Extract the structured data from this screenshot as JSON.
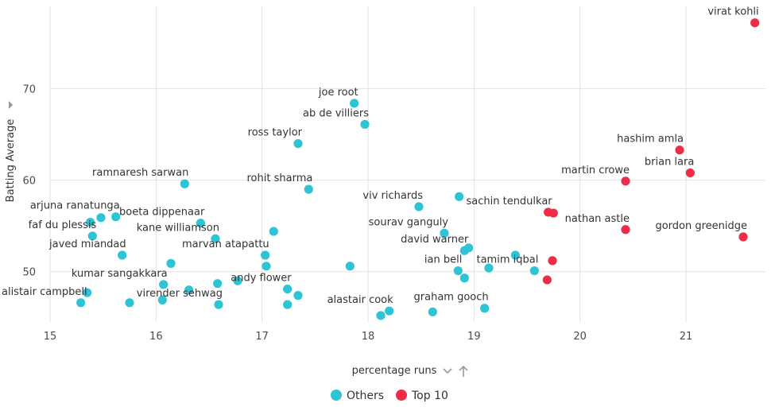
{
  "chart_data": {
    "type": "scatter",
    "xlabel": "percentage runs",
    "ylabel": "Batting Average",
    "xlim": [
      15,
      21.75
    ],
    "ylim": [
      44.5,
      79
    ],
    "x_ticks": [
      15,
      16,
      17,
      18,
      19,
      20,
      21
    ],
    "y_ticks": [
      50,
      60,
      70
    ],
    "grid": true,
    "legend_position": "bottom",
    "colors": {
      "Others": "#2ec4d6",
      "Top 10": "#ee2c48"
    },
    "series": [
      {
        "name": "Others",
        "points": [
          {
            "label": "joe root",
            "x": 17.87,
            "y": 68.4
          },
          {
            "label": "ab de villiers",
            "x": 17.97,
            "y": 66.1
          },
          {
            "label": "ross taylor",
            "x": 17.34,
            "y": 64.0
          },
          {
            "label": "ramnaresh sarwan",
            "x": 16.27,
            "y": 59.6
          },
          {
            "label": "rohit sharma",
            "x": 17.44,
            "y": 59.0
          },
          {
            "label": "",
            "x": 18.86,
            "y": 58.2
          },
          {
            "label": "viv richards",
            "x": 18.48,
            "y": 57.1
          },
          {
            "label": "arjuna ranatunga",
            "x": 15.62,
            "y": 56.0
          },
          {
            "label": "",
            "x": 15.48,
            "y": 55.9
          },
          {
            "label": "",
            "x": 15.38,
            "y": 55.4
          },
          {
            "label": "boeta dippenaar",
            "x": 16.42,
            "y": 55.3
          },
          {
            "label": "",
            "x": 17.11,
            "y": 54.4
          },
          {
            "label": "kane williamson",
            "x": 16.56,
            "y": 53.6
          },
          {
            "label": "faf du plessis",
            "x": 15.4,
            "y": 53.9
          },
          {
            "label": "sourav ganguly",
            "x": 18.72,
            "y": 54.2
          },
          {
            "label": "",
            "x": 18.95,
            "y": 52.6
          },
          {
            "label": "david warner",
            "x": 18.91,
            "y": 52.3
          },
          {
            "label": "javed miandad",
            "x": 15.68,
            "y": 51.8
          },
          {
            "label": "marvan atapattu",
            "x": 17.03,
            "y": 51.8
          },
          {
            "label": "",
            "x": 19.39,
            "y": 51.8
          },
          {
            "label": "",
            "x": 16.14,
            "y": 50.9
          },
          {
            "label": "",
            "x": 17.04,
            "y": 50.6
          },
          {
            "label": "",
            "x": 17.83,
            "y": 50.6
          },
          {
            "label": "",
            "x": 19.14,
            "y": 50.4
          },
          {
            "label": "ian bell",
            "x": 18.85,
            "y": 50.1
          },
          {
            "label": "tamim iqbal",
            "x": 19.57,
            "y": 50.1
          },
          {
            "label": "",
            "x": 18.91,
            "y": 49.3
          },
          {
            "label": "",
            "x": 16.77,
            "y": 49.0
          },
          {
            "label": "kumar sangakkara",
            "x": 16.07,
            "y": 48.6
          },
          {
            "label": "",
            "x": 16.58,
            "y": 48.7
          },
          {
            "label": "andy flower",
            "x": 17.24,
            "y": 48.1
          },
          {
            "label": "",
            "x": 16.31,
            "y": 48.0
          },
          {
            "label": "",
            "x": 15.35,
            "y": 47.7
          },
          {
            "label": "",
            "x": 17.34,
            "y": 47.4
          },
          {
            "label": "alistair campbell",
            "x": 15.29,
            "y": 46.6
          },
          {
            "label": "",
            "x": 15.75,
            "y": 46.6
          },
          {
            "label": "",
            "x": 16.06,
            "y": 46.9
          },
          {
            "label": "virender sehwag",
            "x": 16.59,
            "y": 46.4
          },
          {
            "label": "",
            "x": 17.24,
            "y": 46.4
          },
          {
            "label": "graham gooch",
            "x": 19.1,
            "y": 46.0
          },
          {
            "label": "alastair cook",
            "x": 18.2,
            "y": 45.7
          },
          {
            "label": "",
            "x": 18.12,
            "y": 45.2
          },
          {
            "label": "",
            "x": 18.61,
            "y": 45.6
          }
        ]
      },
      {
        "name": "Top 10",
        "points": [
          {
            "label": "virat kohli",
            "x": 21.65,
            "y": 77.2
          },
          {
            "label": "hashim amla",
            "x": 20.94,
            "y": 63.3
          },
          {
            "label": "brian lara",
            "x": 21.04,
            "y": 60.8
          },
          {
            "label": "martin crowe",
            "x": 20.43,
            "y": 59.9
          },
          {
            "label": "sachin tendulkar",
            "x": 19.7,
            "y": 56.5
          },
          {
            "label": "",
            "x": 19.75,
            "y": 56.4
          },
          {
            "label": "nathan astle",
            "x": 20.43,
            "y": 54.6
          },
          {
            "label": "gordon greenidge",
            "x": 21.54,
            "y": 53.8
          },
          {
            "label": "",
            "x": 19.74,
            "y": 51.2
          },
          {
            "label": "",
            "x": 19.69,
            "y": 49.1
          }
        ]
      }
    ]
  },
  "legend": {
    "items": [
      {
        "label": "Others",
        "color": "#2ec4d6"
      },
      {
        "label": "Top 10",
        "color": "#ee2c48"
      }
    ]
  }
}
